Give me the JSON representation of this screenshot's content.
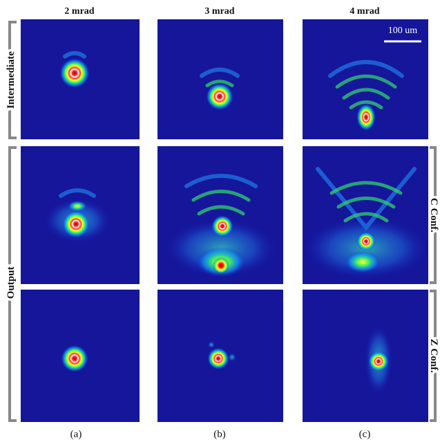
{
  "columns": [
    {
      "header": "2 mrad",
      "caption": "(a)"
    },
    {
      "header": "3 mrad",
      "caption": "(b)"
    },
    {
      "header": "4 mrad",
      "caption": "(c)"
    }
  ],
  "left_labels": [
    "Intermediate",
    "Output"
  ],
  "right_labels": [
    "C Conf.",
    "Z Conf."
  ],
  "scale_bar": "100 um"
}
